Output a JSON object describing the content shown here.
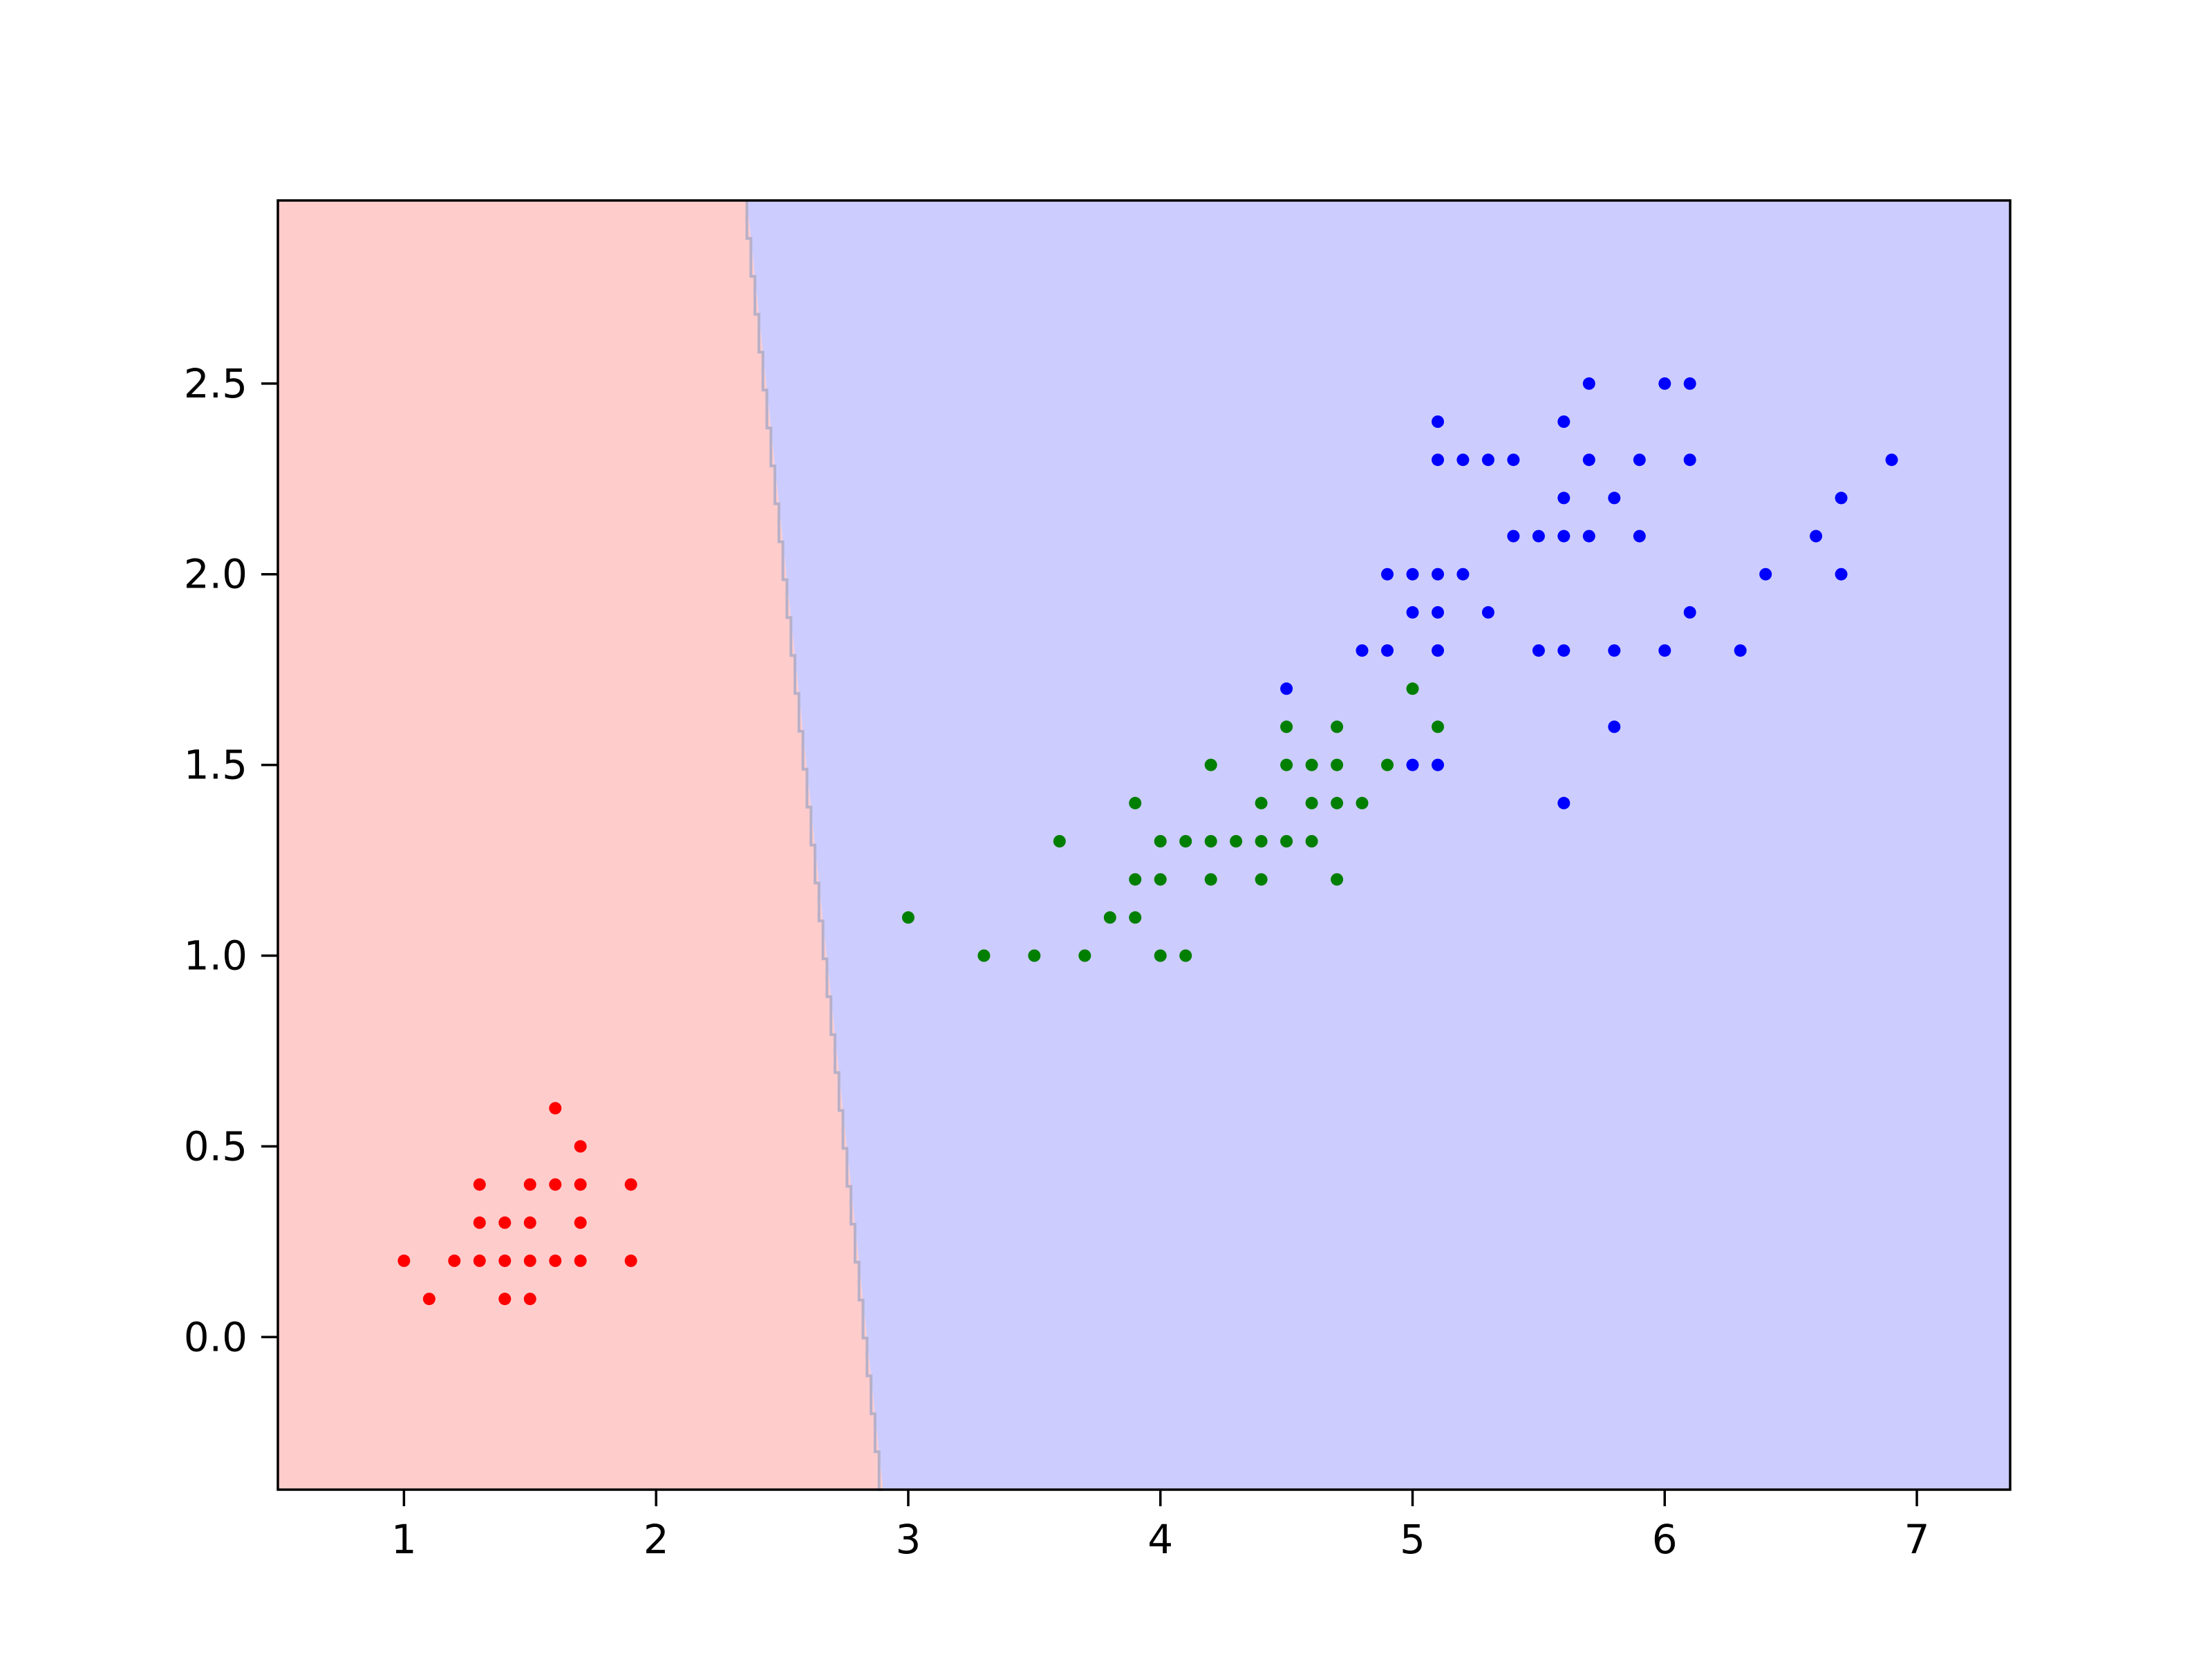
{
  "chart_data": {
    "type": "scatter",
    "title": "",
    "xlabel": "",
    "ylabel": "",
    "xlim": [
      0.5,
      7.37
    ],
    "ylim": [
      -0.4,
      2.98
    ],
    "xticks": [
      1,
      2,
      3,
      4,
      5,
      6,
      7
    ],
    "yticks": [
      0.0,
      0.5,
      1.0,
      1.5,
      2.0,
      2.5
    ],
    "xtick_labels": [
      "1",
      "2",
      "3",
      "4",
      "5",
      "6",
      "7"
    ],
    "ytick_labels": [
      "0.0",
      "0.5",
      "1.0",
      "1.5",
      "2.0",
      "2.5"
    ],
    "grid": false,
    "legend": "none",
    "decision_regions": [
      {
        "label": "class 0 region",
        "color": "#ffcccc"
      },
      {
        "label": "class 1/2 region",
        "color": "#ccccff"
      }
    ],
    "decision_boundary": [
      [
        2.36,
        2.98
      ],
      [
        2.9,
        -0.4
      ]
    ],
    "series": [
      {
        "color": "#ff0000",
        "points": [
          [
            1.0,
            0.2
          ],
          [
            1.1,
            0.1
          ],
          [
            1.2,
            0.2
          ],
          [
            1.3,
            0.2
          ],
          [
            1.3,
            0.3
          ],
          [
            1.3,
            0.4
          ],
          [
            1.4,
            0.1
          ],
          [
            1.4,
            0.2
          ],
          [
            1.4,
            0.3
          ],
          [
            1.5,
            0.1
          ],
          [
            1.5,
            0.2
          ],
          [
            1.5,
            0.3
          ],
          [
            1.5,
            0.4
          ],
          [
            1.6,
            0.2
          ],
          [
            1.6,
            0.4
          ],
          [
            1.6,
            0.6
          ],
          [
            1.7,
            0.2
          ],
          [
            1.7,
            0.3
          ],
          [
            1.7,
            0.4
          ],
          [
            1.7,
            0.5
          ],
          [
            1.9,
            0.2
          ],
          [
            1.9,
            0.4
          ]
        ]
      },
      {
        "color": "#007f00",
        "points": [
          [
            3.0,
            1.1
          ],
          [
            3.3,
            1.0
          ],
          [
            3.5,
            1.0
          ],
          [
            3.6,
            1.3
          ],
          [
            3.7,
            1.0
          ],
          [
            3.8,
            1.1
          ],
          [
            3.9,
            1.1
          ],
          [
            3.9,
            1.2
          ],
          [
            3.9,
            1.4
          ],
          [
            4.0,
            1.0
          ],
          [
            4.0,
            1.2
          ],
          [
            4.0,
            1.3
          ],
          [
            4.1,
            1.0
          ],
          [
            4.1,
            1.3
          ],
          [
            4.2,
            1.2
          ],
          [
            4.2,
            1.3
          ],
          [
            4.2,
            1.5
          ],
          [
            4.3,
            1.3
          ],
          [
            4.4,
            1.2
          ],
          [
            4.4,
            1.3
          ],
          [
            4.4,
            1.4
          ],
          [
            4.5,
            1.3
          ],
          [
            4.5,
            1.5
          ],
          [
            4.5,
            1.6
          ],
          [
            4.6,
            1.3
          ],
          [
            4.6,
            1.4
          ],
          [
            4.6,
            1.5
          ],
          [
            4.7,
            1.2
          ],
          [
            4.7,
            1.4
          ],
          [
            4.7,
            1.5
          ],
          [
            4.7,
            1.6
          ],
          [
            4.8,
            1.4
          ],
          [
            4.9,
            1.5
          ],
          [
            5.0,
            1.7
          ],
          [
            5.1,
            1.6
          ]
        ]
      },
      {
        "color": "#0000ff",
        "points": [
          [
            4.5,
            1.7
          ],
          [
            4.8,
            1.8
          ],
          [
            4.9,
            1.8
          ],
          [
            4.9,
            2.0
          ],
          [
            5.0,
            1.5
          ],
          [
            5.0,
            1.9
          ],
          [
            5.0,
            2.0
          ],
          [
            5.1,
            1.5
          ],
          [
            5.1,
            1.8
          ],
          [
            5.1,
            1.9
          ],
          [
            5.1,
            2.0
          ],
          [
            5.1,
            2.3
          ],
          [
            5.1,
            2.4
          ],
          [
            5.2,
            2.0
          ],
          [
            5.2,
            2.3
          ],
          [
            5.3,
            1.9
          ],
          [
            5.3,
            2.3
          ],
          [
            5.4,
            2.1
          ],
          [
            5.4,
            2.3
          ],
          [
            5.5,
            1.8
          ],
          [
            5.5,
            2.1
          ],
          [
            5.6,
            1.4
          ],
          [
            5.6,
            1.8
          ],
          [
            5.6,
            2.1
          ],
          [
            5.6,
            2.2
          ],
          [
            5.6,
            2.4
          ],
          [
            5.7,
            2.1
          ],
          [
            5.7,
            2.3
          ],
          [
            5.7,
            2.5
          ],
          [
            5.8,
            1.6
          ],
          [
            5.8,
            1.8
          ],
          [
            5.8,
            2.2
          ],
          [
            5.9,
            2.1
          ],
          [
            5.9,
            2.3
          ],
          [
            6.0,
            1.8
          ],
          [
            6.0,
            2.5
          ],
          [
            6.1,
            1.9
          ],
          [
            6.1,
            2.3
          ],
          [
            6.1,
            2.5
          ],
          [
            6.3,
            1.8
          ],
          [
            6.4,
            2.0
          ],
          [
            6.6,
            2.1
          ],
          [
            6.7,
            2.0
          ],
          [
            6.7,
            2.2
          ],
          [
            6.9,
            2.3
          ]
        ]
      }
    ]
  }
}
